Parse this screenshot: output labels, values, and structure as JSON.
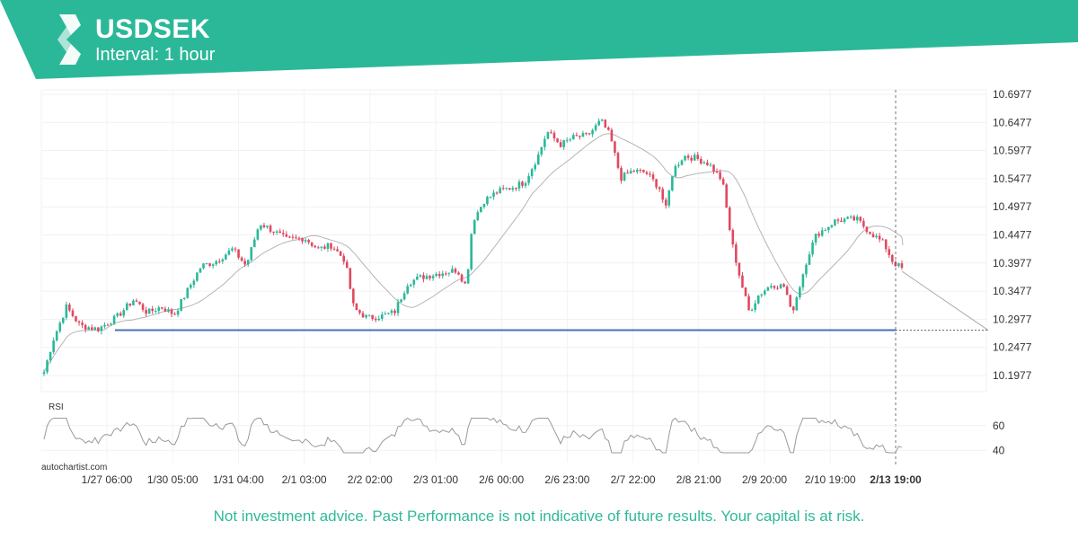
{
  "header": {
    "symbol": "USDSEK",
    "interval": "Interval: 1 hour",
    "brand_color": "#2bb899",
    "logo_icon": "autochartist-logo-icon"
  },
  "footer": {
    "watermark": "autochartist.com",
    "disclaimer": "Not investment advice. Past Performance is not indicative of future results. Your capital is at risk."
  },
  "chart_data": {
    "type": "candlestick",
    "title": "USDSEK",
    "price_axis": {
      "ticks": [
        "10.6977",
        "10.6477",
        "10.5977",
        "10.5477",
        "10.4977",
        "10.4477",
        "10.3977",
        "10.3477",
        "10.2977",
        "10.2477",
        "10.1977"
      ],
      "range": [
        10.17,
        10.71
      ],
      "grid": true
    },
    "time_axis": {
      "ticks": [
        "1/27 06:00",
        "1/30 05:00",
        "1/31 04:00",
        "2/1 03:00",
        "2/2 02:00",
        "2/3 01:00",
        "2/6 00:00",
        "2/6 23:00",
        "2/7 22:00",
        "2/8 21:00",
        "2/9 20:00",
        "2/10 19:00",
        "2/13 19:00"
      ],
      "highlight": "2/13 19:00"
    },
    "close_path": [
      [
        0,
        10.205
      ],
      [
        10,
        10.262
      ],
      [
        25,
        10.322
      ],
      [
        40,
        10.288
      ],
      [
        60,
        10.282
      ],
      [
        80,
        10.302
      ],
      [
        100,
        10.335
      ],
      [
        115,
        10.311
      ],
      [
        130,
        10.322
      ],
      [
        145,
        10.308
      ],
      [
        160,
        10.352
      ],
      [
        175,
        10.395
      ],
      [
        190,
        10.402
      ],
      [
        210,
        10.425
      ],
      [
        225,
        10.395
      ],
      [
        240,
        10.472
      ],
      [
        255,
        10.458
      ],
      [
        270,
        10.442
      ],
      [
        290,
        10.445
      ],
      [
        305,
        10.425
      ],
      [
        320,
        10.432
      ],
      [
        335,
        10.405
      ],
      [
        345,
        10.318
      ],
      [
        360,
        10.302
      ],
      [
        375,
        10.305
      ],
      [
        390,
        10.312
      ],
      [
        405,
        10.365
      ],
      [
        420,
        10.375
      ],
      [
        440,
        10.382
      ],
      [
        460,
        10.388
      ],
      [
        470,
        10.358
      ],
      [
        477,
        10.475
      ],
      [
        490,
        10.512
      ],
      [
        505,
        10.528
      ],
      [
        520,
        10.535
      ],
      [
        535,
        10.545
      ],
      [
        550,
        10.592
      ],
      [
        560,
        10.635
      ],
      [
        575,
        10.612
      ],
      [
        590,
        10.625
      ],
      [
        605,
        10.628
      ],
      [
        620,
        10.655
      ],
      [
        630,
        10.628
      ],
      [
        642,
        10.552
      ],
      [
        655,
        10.565
      ],
      [
        670,
        10.562
      ],
      [
        685,
        10.535
      ],
      [
        692,
        10.495
      ],
      [
        700,
        10.565
      ],
      [
        712,
        10.592
      ],
      [
        725,
        10.588
      ],
      [
        740,
        10.578
      ],
      [
        755,
        10.548
      ],
      [
        765,
        10.442
      ],
      [
        775,
        10.372
      ],
      [
        785,
        10.312
      ],
      [
        795,
        10.342
      ],
      [
        810,
        10.362
      ],
      [
        825,
        10.358
      ],
      [
        832,
        10.308
      ],
      [
        840,
        10.352
      ],
      [
        850,
        10.412
      ],
      [
        860,
        10.452
      ],
      [
        870,
        10.462
      ],
      [
        880,
        10.475
      ],
      [
        892,
        10.478
      ],
      [
        905,
        10.478
      ],
      [
        915,
        10.462
      ],
      [
        925,
        10.448
      ],
      [
        935,
        10.435
      ],
      [
        945,
        10.402
      ],
      [
        957,
        10.388
      ]
    ],
    "indicators": {
      "moving_average": "grey line",
      "pattern": "support line at 10.2800 with projected target near 10.2800 at 2/13 19:00"
    },
    "support_level": 10.28,
    "projection_target": 10.28,
    "rsi": {
      "label": "RSI",
      "ticks": [
        "60",
        "40"
      ],
      "range": [
        30,
        70
      ]
    },
    "colors": {
      "up": "#2bb899",
      "down": "#e04960",
      "support": "#4a72b8",
      "moving_average": "#b5b5b5"
    }
  }
}
